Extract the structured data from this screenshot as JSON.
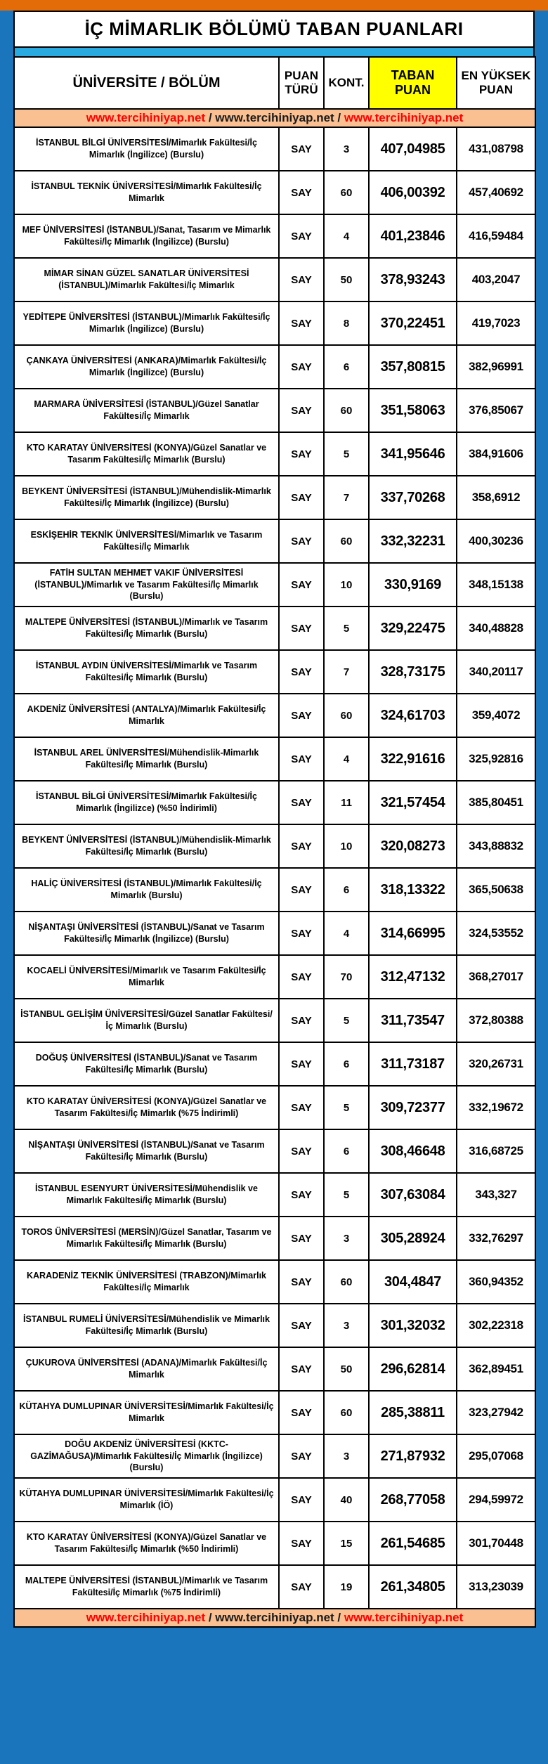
{
  "title": "İÇ MİMARLIK BÖLÜMÜ TABAN PUANLARI",
  "colors": {
    "top_bar_orange": "#e36c09",
    "frame_blue": "#1b75bc",
    "strip_light_blue": "#29abe2",
    "highlight_yellow": "#ffff00",
    "banner_peach": "#fac091",
    "link_red": "#fe0000"
  },
  "columns": {
    "university": "ÜNİVERSİTE / BÖLÜM",
    "score_type": "PUAN TÜRÜ",
    "quota": "KONT.",
    "base_score": "TABAN PUAN",
    "highest_score": "EN YÜKSEK PUAN"
  },
  "banner": {
    "links": [
      "www.tercihiniyap.net",
      "www.tercihiniyap.net",
      "www.tercihiniyap.net"
    ],
    "separator": " / "
  },
  "rows": [
    {
      "university": "İSTANBUL BİLGİ ÜNİVERSİTESİ/Mimarlık Fakültesi/İç Mimarlık (İngilizce) (Burslu)",
      "score_type": "SAY",
      "quota": "3",
      "base_score": "407,04985",
      "highest_score": "431,08798"
    },
    {
      "university": "İSTANBUL TEKNİK ÜNİVERSİTESİ/Mimarlık Fakültesi/İç Mimarlık",
      "score_type": "SAY",
      "quota": "60",
      "base_score": "406,00392",
      "highest_score": "457,40692"
    },
    {
      "university": "MEF ÜNİVERSİTESİ (İSTANBUL)/Sanat, Tasarım ve Mimarlık Fakültesi/İç Mimarlık (İngilizce) (Burslu)",
      "score_type": "SAY",
      "quota": "4",
      "base_score": "401,23846",
      "highest_score": "416,59484"
    },
    {
      "university": "MİMAR SİNAN GÜZEL SANATLAR ÜNİVERSİTESİ (İSTANBUL)/Mimarlık Fakültesi/İç Mimarlık",
      "score_type": "SAY",
      "quota": "50",
      "base_score": "378,93243",
      "highest_score": "403,2047"
    },
    {
      "university": "YEDİTEPE ÜNİVERSİTESİ (İSTANBUL)/Mimarlık Fakültesi/İç Mimarlık (İngilizce) (Burslu)",
      "score_type": "SAY",
      "quota": "8",
      "base_score": "370,22451",
      "highest_score": "419,7023"
    },
    {
      "university": "ÇANKAYA ÜNİVERSİTESİ (ANKARA)/Mimarlık Fakültesi/İç Mimarlık (İngilizce) (Burslu)",
      "score_type": "SAY",
      "quota": "6",
      "base_score": "357,80815",
      "highest_score": "382,96991"
    },
    {
      "university": "MARMARA ÜNİVERSİTESİ (İSTANBUL)/Güzel Sanatlar Fakültesi/İç Mimarlık",
      "score_type": "SAY",
      "quota": "60",
      "base_score": "351,58063",
      "highest_score": "376,85067"
    },
    {
      "university": "KTO KARATAY ÜNİVERSİTESİ (KONYA)/Güzel Sanatlar ve Tasarım Fakültesi/İç Mimarlık (Burslu)",
      "score_type": "SAY",
      "quota": "5",
      "base_score": "341,95646",
      "highest_score": "384,91606"
    },
    {
      "university": "BEYKENT ÜNİVERSİTESİ (İSTANBUL)/Mühendislik-Mimarlık Fakültesi/İç Mimarlık (İngilizce) (Burslu)",
      "score_type": "SAY",
      "quota": "7",
      "base_score": "337,70268",
      "highest_score": "358,6912"
    },
    {
      "university": "ESKİŞEHİR TEKNİK ÜNİVERSİTESİ/Mimarlık ve Tasarım Fakültesi/İç Mimarlık",
      "score_type": "SAY",
      "quota": "60",
      "base_score": "332,32231",
      "highest_score": "400,30236"
    },
    {
      "university": "FATİH SULTAN MEHMET VAKIF ÜNİVERSİTESİ (İSTANBUL)/Mimarlık ve Tasarım Fakültesi/İç Mimarlık (Burslu)",
      "score_type": "SAY",
      "quota": "10",
      "base_score": "330,9169",
      "highest_score": "348,15138"
    },
    {
      "university": "MALTEPE ÜNİVERSİTESİ (İSTANBUL)/Mimarlık ve Tasarım Fakültesi/İç Mimarlık (Burslu)",
      "score_type": "SAY",
      "quota": "5",
      "base_score": "329,22475",
      "highest_score": "340,48828"
    },
    {
      "university": "İSTANBUL AYDIN ÜNİVERSİTESİ/Mimarlık ve Tasarım Fakültesi/İç Mimarlık (Burslu)",
      "score_type": "SAY",
      "quota": "7",
      "base_score": "328,73175",
      "highest_score": "340,20117"
    },
    {
      "university": "AKDENİZ ÜNİVERSİTESİ (ANTALYA)/Mimarlık Fakültesi/İç Mimarlık",
      "score_type": "SAY",
      "quota": "60",
      "base_score": "324,61703",
      "highest_score": "359,4072"
    },
    {
      "university": "İSTANBUL AREL ÜNİVERSİTESİ/Mühendislik-Mimarlık Fakültesi/İç Mimarlık (Burslu)",
      "score_type": "SAY",
      "quota": "4",
      "base_score": "322,91616",
      "highest_score": "325,92816"
    },
    {
      "university": "İSTANBUL BİLGİ ÜNİVERSİTESİ/Mimarlık Fakültesi/İç Mimarlık (İngilizce) (%50 İndirimli)",
      "score_type": "SAY",
      "quota": "11",
      "base_score": "321,57454",
      "highest_score": "385,80451"
    },
    {
      "university": "BEYKENT ÜNİVERSİTESİ (İSTANBUL)/Mühendislik-Mimarlık Fakültesi/İç Mimarlık (Burslu)",
      "score_type": "SAY",
      "quota": "10",
      "base_score": "320,08273",
      "highest_score": "343,88832"
    },
    {
      "university": "HALİÇ ÜNİVERSİTESİ (İSTANBUL)/Mimarlık Fakültesi/İç Mimarlık (Burslu)",
      "score_type": "SAY",
      "quota": "6",
      "base_score": "318,13322",
      "highest_score": "365,50638"
    },
    {
      "university": "NİŞANTAŞI ÜNİVERSİTESİ (İSTANBUL)/Sanat ve Tasarım Fakültesi/İç Mimarlık (İngilizce) (Burslu)",
      "score_type": "SAY",
      "quota": "4",
      "base_score": "314,66995",
      "highest_score": "324,53552"
    },
    {
      "university": "KOCAELİ ÜNİVERSİTESİ/Mimarlık ve Tasarım Fakültesi/İç Mimarlık",
      "score_type": "SAY",
      "quota": "70",
      "base_score": "312,47132",
      "highest_score": "368,27017"
    },
    {
      "university": "İSTANBUL GELİŞİM ÜNİVERSİTESİ/Güzel Sanatlar Fakültesi/İç Mimarlık (Burslu)",
      "score_type": "SAY",
      "quota": "5",
      "base_score": "311,73547",
      "highest_score": "372,80388"
    },
    {
      "university": "DOĞUŞ ÜNİVERSİTESİ (İSTANBUL)/Sanat ve Tasarım Fakültesi/İç Mimarlık (Burslu)",
      "score_type": "SAY",
      "quota": "6",
      "base_score": "311,73187",
      "highest_score": "320,26731"
    },
    {
      "university": "KTO KARATAY ÜNİVERSİTESİ (KONYA)/Güzel Sanatlar ve Tasarım Fakültesi/İç Mimarlık (%75 İndirimli)",
      "score_type": "SAY",
      "quota": "5",
      "base_score": "309,72377",
      "highest_score": "332,19672"
    },
    {
      "university": "NİŞANTAŞI ÜNİVERSİTESİ (İSTANBUL)/Sanat ve Tasarım Fakültesi/İç Mimarlık (Burslu)",
      "score_type": "SAY",
      "quota": "6",
      "base_score": "308,46648",
      "highest_score": "316,68725"
    },
    {
      "university": "İSTANBUL ESENYURT ÜNİVERSİTESİ/Mühendislik ve Mimarlık Fakültesi/İç Mimarlık (Burslu)",
      "score_type": "SAY",
      "quota": "5",
      "base_score": "307,63084",
      "highest_score": "343,327"
    },
    {
      "university": "TOROS ÜNİVERSİTESİ (MERSİN)/Güzel Sanatlar, Tasarım ve Mimarlık Fakültesi/İç Mimarlık (Burslu)",
      "score_type": "SAY",
      "quota": "3",
      "base_score": "305,28924",
      "highest_score": "332,76297"
    },
    {
      "university": "KARADENİZ TEKNİK ÜNİVERSİTESİ (TRABZON)/Mimarlık Fakültesi/İç Mimarlık",
      "score_type": "SAY",
      "quota": "60",
      "base_score": "304,4847",
      "highest_score": "360,94352"
    },
    {
      "university": "İSTANBUL RUMELİ ÜNİVERSİTESİ/Mühendislik ve Mimarlık Fakültesi/İç Mimarlık (Burslu)",
      "score_type": "SAY",
      "quota": "3",
      "base_score": "301,32032",
      "highest_score": "302,22318"
    },
    {
      "university": "ÇUKUROVA ÜNİVERSİTESİ (ADANA)/Mimarlık Fakültesi/İç Mimarlık",
      "score_type": "SAY",
      "quota": "50",
      "base_score": "296,62814",
      "highest_score": "362,89451"
    },
    {
      "university": "KÜTAHYA DUMLUPINAR ÜNİVERSİTESİ/Mimarlık Fakültesi/İç Mimarlık",
      "score_type": "SAY",
      "quota": "60",
      "base_score": "285,38811",
      "highest_score": "323,27942"
    },
    {
      "university": "DOĞU AKDENİZ ÜNİVERSİTESİ (KKTC-GAZİMAĞUSA)/Mimarlık Fakültesi/İç Mimarlık (İngilizce) (Burslu)",
      "score_type": "SAY",
      "quota": "3",
      "base_score": "271,87932",
      "highest_score": "295,07068"
    },
    {
      "university": "KÜTAHYA DUMLUPINAR ÜNİVERSİTESİ/Mimarlık Fakültesi/İç Mimarlık (İÖ)",
      "score_type": "SAY",
      "quota": "40",
      "base_score": "268,77058",
      "highest_score": "294,59972"
    },
    {
      "university": "KTO KARATAY ÜNİVERSİTESİ (KONYA)/Güzel Sanatlar ve Tasarım Fakültesi/İç Mimarlık (%50 İndirimli)",
      "score_type": "SAY",
      "quota": "15",
      "base_score": "261,54685",
      "highest_score": "301,70448"
    },
    {
      "university": "MALTEPE ÜNİVERSİTESİ (İSTANBUL)/Mimarlık ve Tasarım Fakültesi/İç Mimarlık (%75 İndirimli)",
      "score_type": "SAY",
      "quota": "19",
      "base_score": "261,34805",
      "highest_score": "313,23039"
    }
  ]
}
